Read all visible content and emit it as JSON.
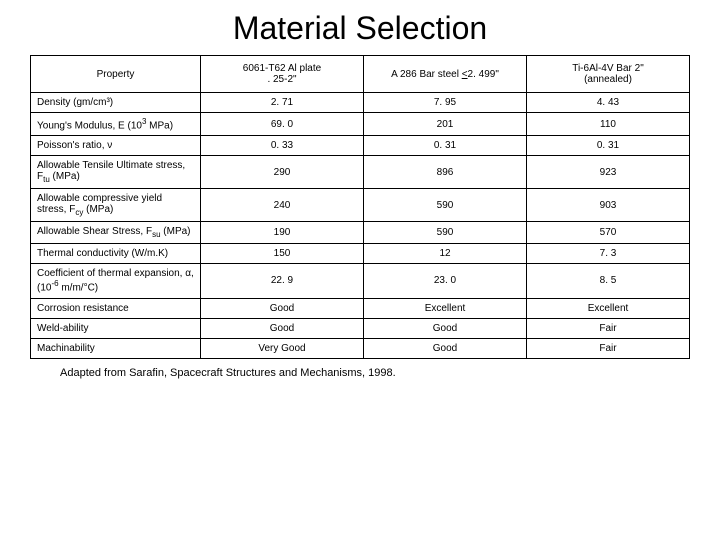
{
  "title": "Material Selection",
  "footer": "Adapted from Sarafin, Spacecraft Structures and Mechanisms, 1998.",
  "headers": {
    "property": "Property",
    "col1_line1": "6061-T62 Al plate",
    "col1_line2": ". 25-2\"",
    "col2": "A 286 Bar steel <2. 499\"",
    "col3_line1": "Ti-6Al-4V Bar 2\"",
    "col3_line2": "(annealed)"
  },
  "rows": [
    {
      "prop": "Density (gm/cm³)",
      "v1": "2. 71",
      "v2": "7. 95",
      "v3": "4. 43"
    },
    {
      "prop": "Young's Modulus, E (10³ MPa)",
      "v1": "69. 0",
      "v2": "201",
      "v3": "110"
    },
    {
      "prop": "Poisson's ratio, ν",
      "v1": "0. 33",
      "v2": "0. 31",
      "v3": "0. 31"
    },
    {
      "prop": "Allowable Tensile Ultimate stress, F_tu (MPa)",
      "v1": "290",
      "v2": "896",
      "v3": "923"
    },
    {
      "prop": "Allowable compressive yield stress, F_cy (MPa)",
      "v1": "240",
      "v2": "590",
      "v3": "903"
    },
    {
      "prop": "Allowable Shear Stress, F_su (MPa)",
      "v1": "190",
      "v2": "590",
      "v3": "570"
    },
    {
      "prop": "Thermal conductivity (W/m.K)",
      "v1": "150",
      "v2": "12",
      "v3": "7. 3"
    },
    {
      "prop": "Coefficient of thermal expansion, α, (10⁻⁶ m/m/°C)",
      "v1": "22. 9",
      "v2": "23. 0",
      "v3": "8. 5"
    },
    {
      "prop": "Corrosion resistance",
      "v1": "Good",
      "v2": "Excellent",
      "v3": "Excellent"
    },
    {
      "prop": "Weld-ability",
      "v1": "Good",
      "v2": "Good",
      "v3": "Fair"
    },
    {
      "prop": "Machinability",
      "v1": "Very Good",
      "v2": "Good",
      "v3": "Fair"
    }
  ]
}
